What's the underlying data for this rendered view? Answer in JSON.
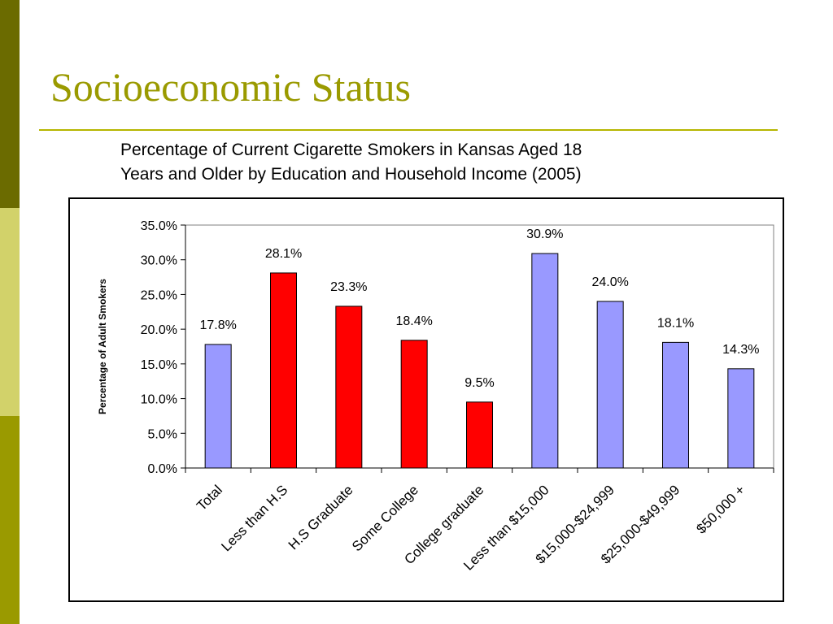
{
  "slide": {
    "title": "Socioeconomic Status",
    "subtitle_line1": "Percentage of Current Cigarette Smokers in Kansas Aged 18",
    "subtitle_line2": "Years and Older by Education and Household Income (2005)"
  },
  "colors": {
    "sidebar_top": "#6b6b00",
    "sidebar_mid": "#d2d26a",
    "sidebar_bottom": "#9a9a00",
    "title": "#9a9a00",
    "bar_blue": "#9999ff",
    "bar_red": "#ff0000"
  },
  "chart_data": {
    "type": "bar",
    "title": "Percentage of Current Cigarette Smokers in Kansas Aged 18 Years and Older by Education and Household Income (2005)",
    "xlabel": "",
    "ylabel": "Percentage of Adult Smokers",
    "ylim": [
      0,
      35
    ],
    "yticks": [
      "0.0%",
      "5.0%",
      "10.0%",
      "15.0%",
      "20.0%",
      "25.0%",
      "30.0%",
      "35.0%"
    ],
    "grid": false,
    "legend": "none",
    "categories": [
      "Total",
      "Less than H.S",
      "H.S Graduate",
      "Some College",
      "College graduate",
      "Less than $15,000",
      "$15,000-$24,999",
      "$25,000-$49,999",
      "$50,000 +"
    ],
    "values": [
      17.8,
      28.1,
      23.3,
      18.4,
      9.5,
      30.9,
      24.0,
      18.1,
      14.3
    ],
    "data_labels": [
      "17.8%",
      "28.1%",
      "23.3%",
      "18.4%",
      "9.5%",
      "30.9%",
      "24.0%",
      "18.1%",
      "14.3%"
    ],
    "bar_colors": [
      "#9999ff",
      "#ff0000",
      "#ff0000",
      "#ff0000",
      "#ff0000",
      "#9999ff",
      "#9999ff",
      "#9999ff",
      "#9999ff"
    ]
  }
}
